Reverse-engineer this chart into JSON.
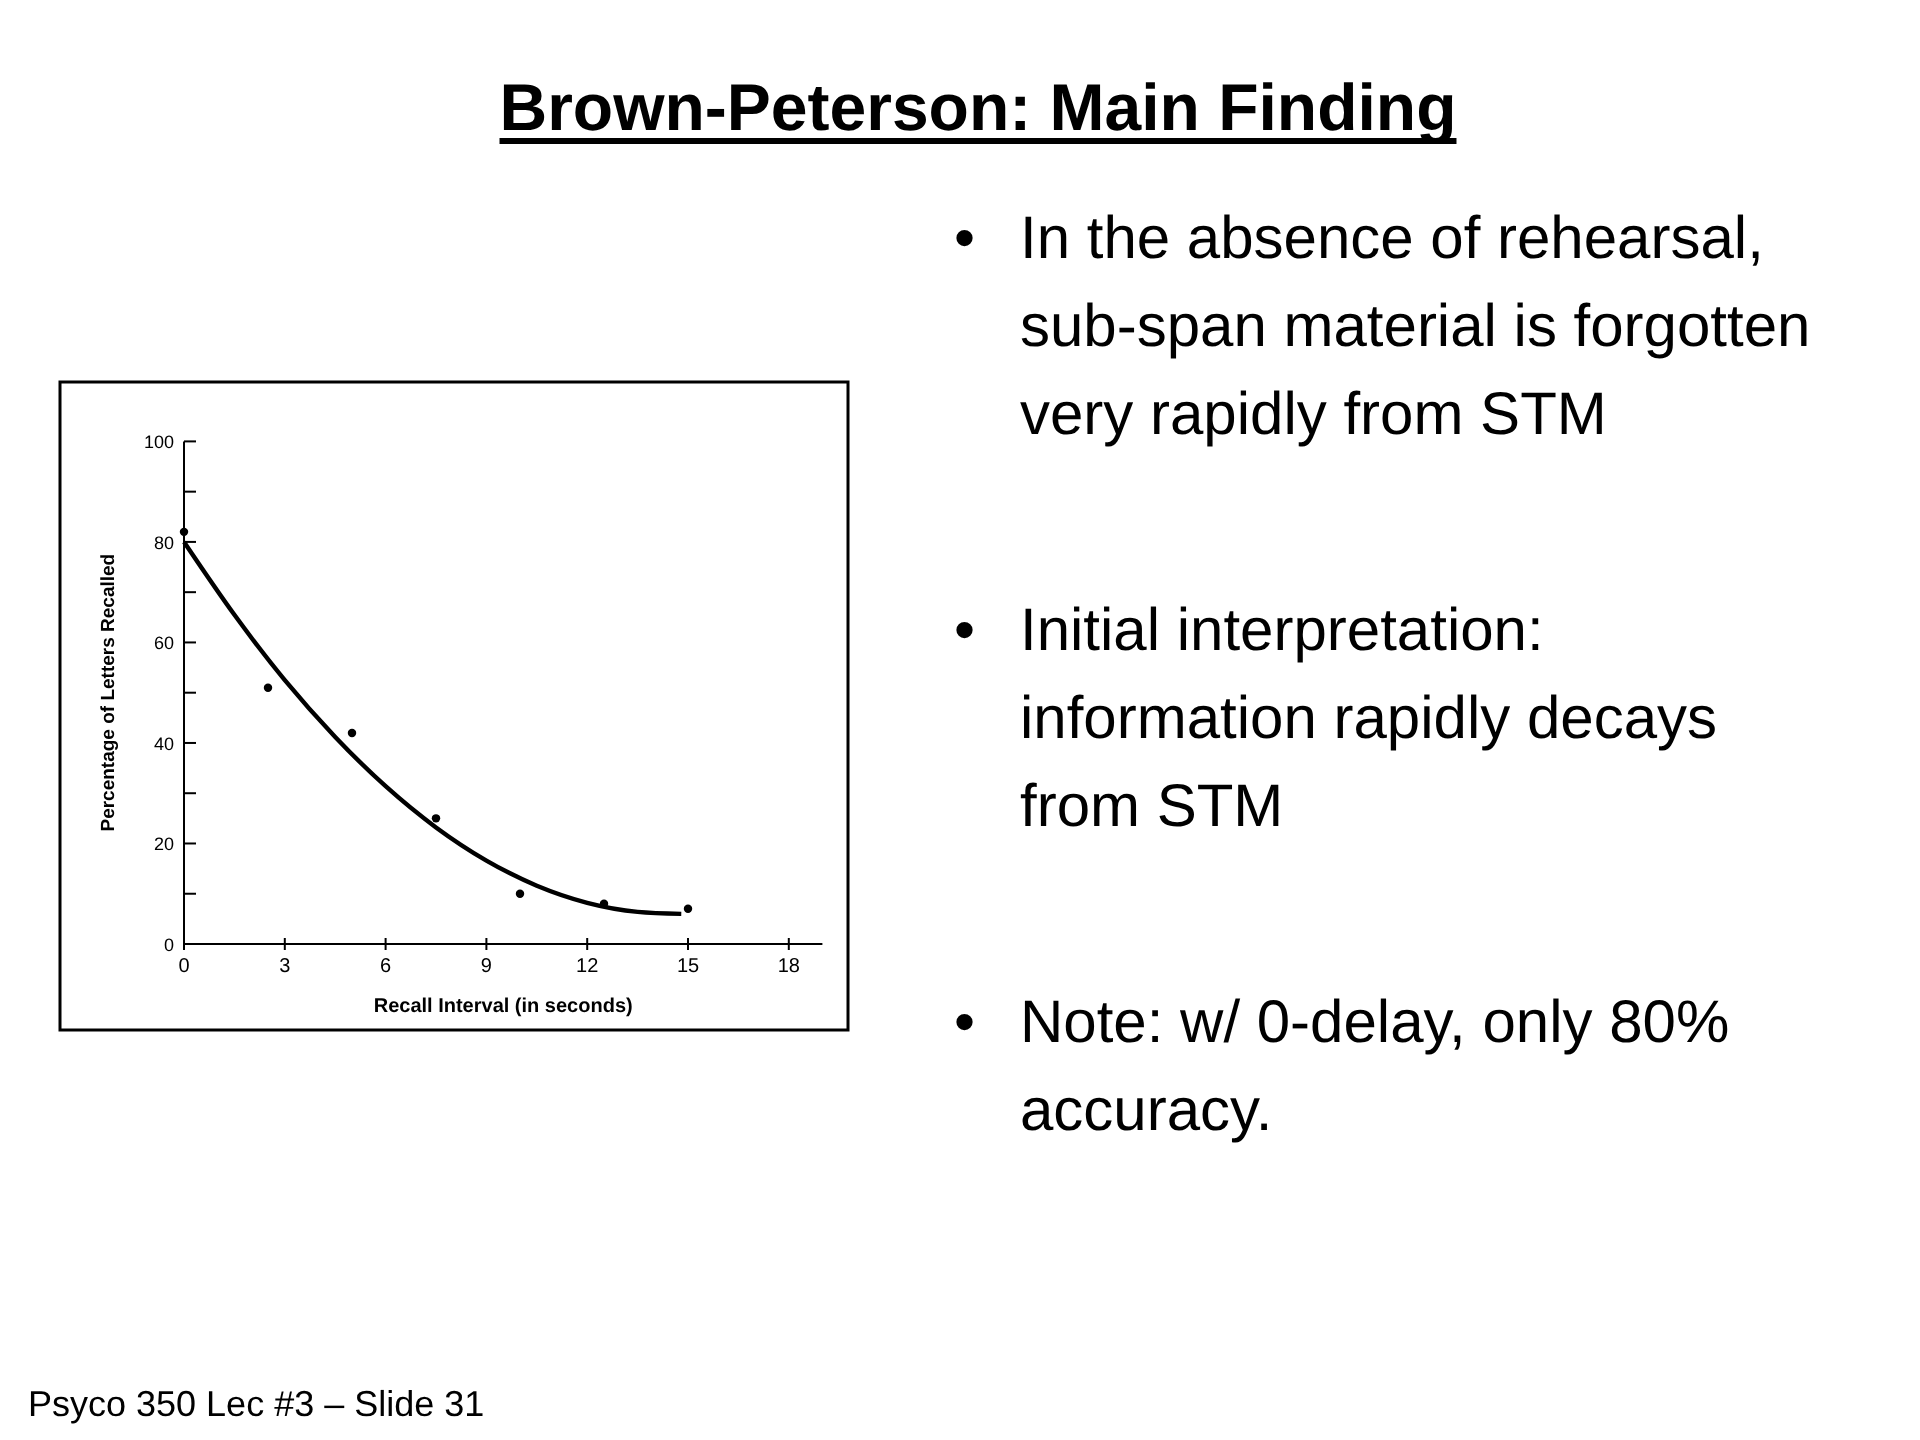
{
  "chart_data": {
    "type": "scatter",
    "title": "Brown-Peterson: Main Finding",
    "xlabel": "Recall Interval (in seconds)",
    "ylabel": "Percentage of Letters Recalled",
    "xlim": [
      0,
      19
    ],
    "xticks": [
      0,
      3,
      6,
      9,
      12,
      15,
      18
    ],
    "ylim": [
      0,
      100
    ],
    "yticks": [
      0,
      {
        "value": 10,
        "label": null
      },
      20,
      {
        "value": 30,
        "label": null
      },
      40,
      {
        "value": 50,
        "label": null
      },
      60,
      {
        "value": 70,
        "label": null
      },
      80,
      {
        "value": 90,
        "label": null
      },
      100
    ],
    "grid": false,
    "x": [
      0,
      2.5,
      5,
      7.5,
      10,
      12.5,
      15
    ],
    "series": [
      {
        "color": "#000000",
        "marker": "circle",
        "values": [
          82,
          51,
          42,
          25,
          10,
          8,
          7
        ]
      },
      {
        "type": "line",
        "color": "#000000",
        "x": [
          0,
          1.5,
          3,
          4.5,
          6,
          7.5,
          9,
          10.5,
          12,
          13.5,
          14.8
        ],
        "values": [
          80,
          65.5,
          52.5,
          41.2,
          31.4,
          23.2,
          16.6,
          11.6,
          8.2,
          6.4,
          6
        ]
      }
    ],
    "annotations": [
      "• In the absence of rehearsal, sub-span material is forgotten very rapidly from STM",
      "• Initial interpretation: information rapidly decays from STM",
      "• Note: w/ 0-delay, only 80% accuracy.",
      "Psyco 350 Lec #3 – Slide 31"
    ]
  }
}
